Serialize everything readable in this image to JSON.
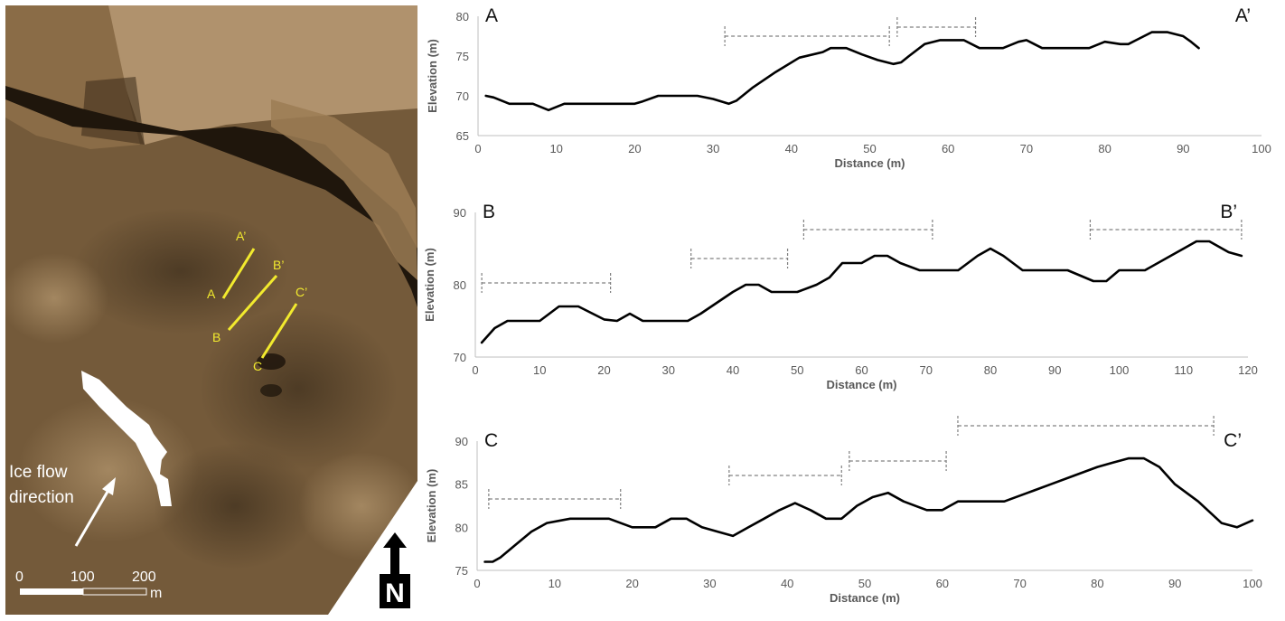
{
  "map": {
    "profile_lines": [
      {
        "start": "A",
        "end": "A’"
      },
      {
        "start": "B",
        "end": "B’"
      },
      {
        "start": "C",
        "end": "C’"
      }
    ],
    "ice_flow_label_line1": "Ice flow",
    "ice_flow_label_line2": "direction",
    "scale_ticks": [
      "0",
      "100",
      "200"
    ],
    "scale_unit": "m",
    "north_label": "N",
    "colors": {
      "terrain": "#7a6040",
      "profile_line": "#f2ea2e",
      "snow": "#ffffff"
    }
  },
  "chart_data": [
    {
      "type": "line",
      "panel_label_left": "A",
      "panel_label_right": "A’",
      "xlabel": "Distance (m)",
      "ylabel": "Elevation (m)",
      "xlim": [
        0,
        100
      ],
      "ylim": [
        65,
        80
      ],
      "xticks": [
        0,
        10,
        20,
        30,
        40,
        50,
        60,
        70,
        80,
        90,
        100
      ],
      "yticks": [
        65,
        70,
        75,
        80
      ],
      "grid": false,
      "series": [
        {
          "x": [
            1,
            2,
            4,
            7,
            9,
            11,
            14,
            20,
            21,
            23,
            28,
            30,
            32,
            33,
            35,
            38,
            41,
            44,
            45,
            47,
            49,
            51,
            53,
            54,
            55,
            57,
            59,
            62,
            64,
            67,
            69,
            70,
            72,
            74,
            78,
            80,
            82,
            83,
            84,
            86,
            88,
            90,
            91,
            92
          ],
          "y": [
            70,
            69.8,
            69,
            69,
            68.2,
            69,
            69,
            69,
            69.3,
            70,
            70,
            69.6,
            69,
            69.4,
            71,
            73,
            74.8,
            75.5,
            76,
            76,
            75.2,
            74.5,
            74,
            74.2,
            75,
            76.5,
            77,
            77,
            76,
            76,
            76.8,
            77,
            76,
            76,
            76,
            76.8,
            76.5,
            76.5,
            77,
            78,
            78,
            77.5,
            76.8,
            76
          ]
        }
      ],
      "ranges": [
        [
          31.5,
          52.5
        ],
        [
          53.5,
          63.5
        ]
      ]
    },
    {
      "type": "line",
      "panel_label_left": "B",
      "panel_label_right": "B’",
      "xlabel": "Distance (m)",
      "ylabel": "Elevation (m)",
      "xlim": [
        0,
        120
      ],
      "ylim": [
        70,
        90
      ],
      "xticks": [
        0,
        10,
        20,
        30,
        40,
        50,
        60,
        70,
        80,
        90,
        100,
        110,
        120
      ],
      "yticks": [
        70,
        80,
        90
      ],
      "grid": false,
      "series": [
        {
          "x": [
            1,
            3,
            5,
            10,
            13,
            16,
            20,
            22,
            24,
            26,
            30,
            33,
            35,
            40,
            42,
            44,
            46,
            50,
            53,
            55,
            57,
            60,
            62,
            64,
            66,
            69,
            72,
            75,
            78,
            80,
            82,
            85,
            88,
            92,
            96,
            98,
            100,
            104,
            108,
            110,
            112,
            114,
            117,
            119
          ],
          "y": [
            72,
            74,
            75,
            75,
            77,
            77,
            75.2,
            75,
            76,
            75,
            75,
            75,
            76,
            79,
            80,
            80,
            79,
            79,
            80,
            81,
            83,
            83,
            84,
            84,
            83,
            82,
            82,
            82,
            84,
            85,
            84,
            82,
            82,
            82,
            80.5,
            80.5,
            82,
            82,
            84,
            85,
            86,
            86,
            84.5,
            84
          ]
        }
      ],
      "ranges": [
        [
          1,
          21
        ],
        [
          33.5,
          48.5
        ],
        [
          51,
          71
        ],
        [
          95.5,
          119
        ]
      ]
    },
    {
      "type": "line",
      "panel_label_left": "C",
      "panel_label_right": "C’",
      "xlabel": "Distance (m)",
      "ylabel": "Elevation (m)",
      "xlim": [
        0,
        100
      ],
      "ylim": [
        75,
        90
      ],
      "xticks": [
        0,
        10,
        20,
        30,
        40,
        50,
        60,
        70,
        80,
        90,
        100
      ],
      "yticks": [
        75,
        80,
        85,
        90
      ],
      "grid": false,
      "series": [
        {
          "x": [
            1,
            2,
            3,
            5,
            7,
            9,
            12,
            15,
            17,
            20,
            23,
            25,
            27,
            29,
            31,
            33,
            35,
            37,
            39,
            41,
            43,
            45,
            47,
            49,
            51,
            53,
            55,
            58,
            60,
            62,
            65,
            68,
            71,
            74,
            77,
            80,
            82,
            84,
            86,
            88,
            90,
            93,
            96,
            98,
            100
          ],
          "y": [
            76,
            76,
            76.5,
            78,
            79.5,
            80.5,
            81,
            81,
            81,
            80,
            80,
            81,
            81,
            80,
            79.5,
            79,
            80,
            81,
            82,
            82.8,
            82,
            81,
            81,
            82.5,
            83.5,
            84,
            83,
            82,
            82,
            83,
            83,
            83,
            84,
            85,
            86,
            87,
            87.5,
            88,
            88,
            87,
            85,
            83,
            80.5,
            80,
            80.8
          ]
        }
      ],
      "ranges": [
        [
          1.5,
          18.5
        ],
        [
          32.5,
          47
        ],
        [
          48,
          60.5
        ],
        [
          62,
          95
        ]
      ]
    }
  ]
}
